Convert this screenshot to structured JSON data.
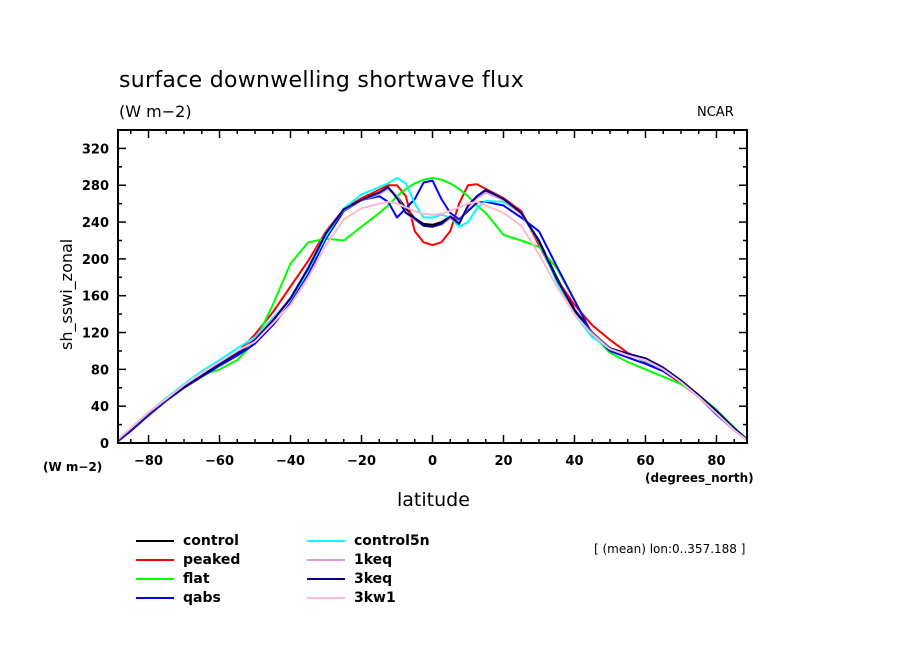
{
  "chart_data": {
    "type": "line",
    "title": "surface downwelling shortwave flux",
    "units": "(W m−2)",
    "credit": "NCAR",
    "ylabel": "sh_sswi_zonal",
    "yunits": "(W m−2)",
    "xlabel": "latitude",
    "xunits": "(degrees_north)",
    "note": "[ (mean) lon:0..357.188 ]",
    "xlim": [
      -88.6,
      88.6
    ],
    "ylim": [
      0,
      340
    ],
    "xticks": [
      -80,
      -60,
      -40,
      -20,
      0,
      20,
      40,
      60,
      80
    ],
    "xtick_labels": [
      "−80",
      "−60",
      "−40",
      "−20",
      "0",
      "20",
      "40",
      "60",
      "80"
    ],
    "yticks": [
      0,
      40,
      80,
      120,
      160,
      200,
      240,
      280,
      320
    ],
    "ytick_labels": [
      "0",
      "40",
      "80",
      "120",
      "160",
      "200",
      "240",
      "280",
      "320"
    ],
    "x": [
      -88.6,
      -85,
      -80,
      -75,
      -70,
      -65,
      -60,
      -55,
      -50,
      -45,
      -40,
      -35,
      -30,
      -25,
      -20,
      -15,
      -12.5,
      -10,
      -7.5,
      -5,
      -2.5,
      0,
      2.5,
      5,
      7.5,
      10,
      12.5,
      15,
      20,
      25,
      30,
      35,
      40,
      45,
      50,
      55,
      60,
      65,
      70,
      75,
      80,
      85,
      88.6
    ],
    "series": [
      {
        "name": "control",
        "color": "#000000",
        "values": [
          3,
          15,
          32,
          47,
          61,
          73,
          85,
          97,
          112,
          133,
          157,
          190,
          228,
          253,
          265,
          272,
          277,
          268,
          255,
          244,
          238,
          237,
          240,
          246,
          240,
          256,
          268,
          274,
          265,
          250,
          220,
          180,
          145,
          120,
          103,
          97,
          90,
          80,
          67,
          52,
          34,
          16,
          4
        ]
      },
      {
        "name": "peaked",
        "color": "#ff0000",
        "values": [
          3,
          16,
          33,
          48,
          62,
          74,
          85,
          98,
          118,
          142,
          170,
          198,
          230,
          254,
          266,
          275,
          280,
          280,
          268,
          230,
          218,
          215,
          218,
          230,
          260,
          280,
          281,
          276,
          266,
          252,
          215,
          178,
          150,
          128,
          112,
          98,
          88,
          78,
          65,
          50,
          33,
          15,
          4
        ]
      },
      {
        "name": "flat",
        "color": "#00ff00",
        "values": [
          3,
          16,
          33,
          48,
          62,
          74,
          80,
          90,
          110,
          150,
          195,
          218,
          222,
          220,
          235,
          250,
          258,
          268,
          276,
          282,
          286,
          288,
          286,
          282,
          276,
          268,
          258,
          250,
          226,
          220,
          213,
          190,
          155,
          118,
          98,
          88,
          80,
          72,
          64,
          52,
          36,
          17,
          4
        ]
      },
      {
        "name": "qabs",
        "color": "#0000ff",
        "values": [
          2,
          13,
          30,
          46,
          60,
          72,
          84,
          95,
          108,
          128,
          152,
          183,
          222,
          252,
          264,
          268,
          262,
          245,
          255,
          265,
          283,
          285,
          265,
          250,
          243,
          252,
          261,
          262,
          258,
          245,
          230,
          192,
          155,
          118,
          100,
          93,
          86,
          78,
          66,
          50,
          31,
          14,
          3
        ]
      },
      {
        "name": "control5n",
        "color": "#00ffff",
        "values": [
          4,
          16,
          33,
          49,
          64,
          78,
          90,
          103,
          115,
          136,
          156,
          188,
          225,
          255,
          270,
          278,
          282,
          288,
          282,
          260,
          245,
          245,
          248,
          245,
          235,
          240,
          255,
          263,
          262,
          250,
          218,
          175,
          140,
          115,
          102,
          96,
          89,
          80,
          67,
          50,
          33,
          15,
          4
        ]
      },
      {
        "name": "1keq",
        "color": "#dd99dd",
        "values": [
          3,
          15,
          32,
          47,
          62,
          75,
          87,
          98,
          113,
          134,
          158,
          191,
          229,
          253,
          264,
          270,
          276,
          268,
          250,
          242,
          236,
          235,
          237,
          244,
          240,
          256,
          266,
          272,
          264,
          249,
          218,
          178,
          143,
          119,
          103,
          97,
          90,
          80,
          67,
          52,
          34,
          16,
          4
        ]
      },
      {
        "name": "3keq",
        "color": "#000080",
        "values": [
          3,
          15,
          32,
          47,
          61,
          73,
          86,
          98,
          112,
          133,
          157,
          190,
          228,
          254,
          264,
          272,
          278,
          266,
          250,
          244,
          236,
          235,
          238,
          246,
          238,
          258,
          268,
          275,
          265,
          250,
          219,
          178,
          144,
          118,
          103,
          97,
          92,
          82,
          68,
          52,
          35,
          16,
          4
        ]
      },
      {
        "name": "3kw1",
        "color": "#ffbbcc",
        "values": [
          4,
          16,
          33,
          48,
          63,
          76,
          88,
          100,
          110,
          130,
          150,
          180,
          215,
          243,
          255,
          260,
          262,
          260,
          256,
          252,
          249,
          248,
          249,
          252,
          256,
          260,
          262,
          258,
          250,
          236,
          205,
          170,
          140,
          118,
          102,
          95,
          90,
          80,
          66,
          50,
          32,
          14,
          3
        ]
      }
    ]
  }
}
